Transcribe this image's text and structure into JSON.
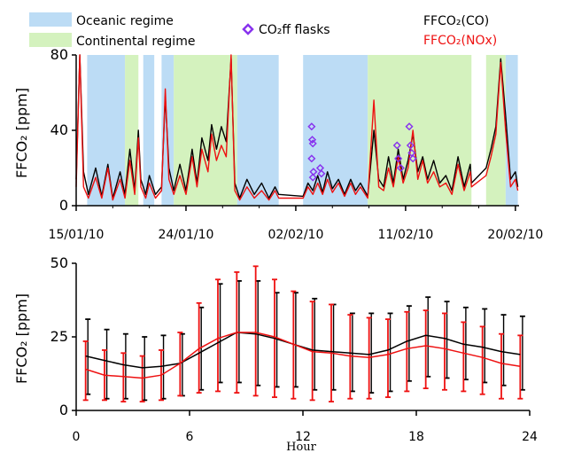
{
  "chart_data": [
    {
      "type": "line",
      "ylabel": "FFCO₂ [ppm]",
      "ylim": [
        0,
        80
      ],
      "y_ticks": [
        "0",
        "40",
        "80"
      ],
      "x_ticks": [
        "15/01/10",
        "24/01/10",
        "02/02/10",
        "11/02/10",
        "20/02/10"
      ],
      "x_tick_days": [
        0,
        9,
        18,
        27,
        36
      ],
      "xlim_days": [
        0,
        36.3
      ],
      "legend": {
        "oceanic": "Oceanic regime",
        "continental": "Continental regime",
        "flasks": "CO₂ff flasks",
        "series_co": "FFCO₂(CO)",
        "series_nox": "FFCO₂(NOx)"
      },
      "colors": {
        "oceanic": "#bcdcf5",
        "continental": "#d4f2be",
        "co": "#000000",
        "nox": "#ee1111",
        "flask": "#8833ee"
      },
      "regimes": [
        {
          "type": "oceanic",
          "start": 0.9,
          "end": 4.0
        },
        {
          "type": "continental",
          "start": 4.0,
          "end": 5.1
        },
        {
          "type": "oceanic",
          "start": 5.5,
          "end": 6.4
        },
        {
          "type": "oceanic",
          "start": 7.0,
          "end": 8.0
        },
        {
          "type": "continental",
          "start": 8.0,
          "end": 13.2
        },
        {
          "type": "oceanic",
          "start": 13.2,
          "end": 16.6
        },
        {
          "type": "oceanic",
          "start": 18.6,
          "end": 23.9
        },
        {
          "type": "continental",
          "start": 23.9,
          "end": 32.4
        },
        {
          "type": "continental",
          "start": 33.6,
          "end": 35.2
        },
        {
          "type": "oceanic",
          "start": 35.2,
          "end": 36.2
        }
      ],
      "series": [
        {
          "name": "FFCO₂(CO)",
          "points": [
            [
              0,
              14
            ],
            [
              0.3,
              80
            ],
            [
              0.6,
              18
            ],
            [
              1,
              6
            ],
            [
              1.6,
              20
            ],
            [
              2.1,
              5
            ],
            [
              2.6,
              22
            ],
            [
              3.0,
              4
            ],
            [
              3.6,
              18
            ],
            [
              4.0,
              6
            ],
            [
              4.4,
              30
            ],
            [
              4.8,
              8
            ],
            [
              5.1,
              40
            ],
            [
              5.3,
              14
            ],
            [
              5.7,
              6
            ],
            [
              6.0,
              16
            ],
            [
              6.5,
              6
            ],
            [
              7.0,
              10
            ],
            [
              7.3,
              58
            ],
            [
              7.6,
              20
            ],
            [
              8.0,
              8
            ],
            [
              8.5,
              22
            ],
            [
              9.0,
              8
            ],
            [
              9.5,
              30
            ],
            [
              9.9,
              12
            ],
            [
              10.3,
              36
            ],
            [
              10.8,
              24
            ],
            [
              11.1,
              43
            ],
            [
              11.5,
              30
            ],
            [
              11.9,
              42
            ],
            [
              12.3,
              34
            ],
            [
              12.7,
              78
            ],
            [
              13.0,
              12
            ],
            [
              13.4,
              4
            ],
            [
              14.0,
              14
            ],
            [
              14.6,
              6
            ],
            [
              15.2,
              12
            ],
            [
              15.8,
              4
            ],
            [
              16.3,
              10
            ],
            [
              16.6,
              6
            ],
            [
              18.6,
              5
            ],
            [
              19.0,
              12
            ],
            [
              19.4,
              8
            ],
            [
              19.8,
              16
            ],
            [
              20.2,
              7
            ],
            [
              20.6,
              18
            ],
            [
              21.0,
              9
            ],
            [
              21.5,
              14
            ],
            [
              22.0,
              6
            ],
            [
              22.5,
              14
            ],
            [
              22.9,
              8
            ],
            [
              23.3,
              12
            ],
            [
              23.9,
              5
            ],
            [
              24.4,
              40
            ],
            [
              24.8,
              14
            ],
            [
              25.2,
              10
            ],
            [
              25.6,
              26
            ],
            [
              26.0,
              12
            ],
            [
              26.4,
              30
            ],
            [
              26.8,
              14
            ],
            [
              27.2,
              24
            ],
            [
              27.6,
              38
            ],
            [
              28.0,
              18
            ],
            [
              28.4,
              26
            ],
            [
              28.8,
              14
            ],
            [
              29.3,
              24
            ],
            [
              29.8,
              12
            ],
            [
              30.3,
              16
            ],
            [
              30.8,
              8
            ],
            [
              31.3,
              26
            ],
            [
              31.8,
              10
            ],
            [
              32.3,
              22
            ],
            [
              32.4,
              12
            ],
            [
              33.6,
              20
            ],
            [
              34.0,
              30
            ],
            [
              34.4,
              42
            ],
            [
              34.8,
              78
            ],
            [
              35.2,
              48
            ],
            [
              35.6,
              14
            ],
            [
              36.0,
              18
            ],
            [
              36.2,
              10
            ]
          ]
        },
        {
          "name": "FFCO₂(NOx)",
          "points": [
            [
              0,
              10
            ],
            [
              0.3,
              80
            ],
            [
              0.6,
              10
            ],
            [
              1,
              4
            ],
            [
              1.6,
              15
            ],
            [
              2.1,
              4
            ],
            [
              2.6,
              20
            ],
            [
              3.0,
              3
            ],
            [
              3.6,
              14
            ],
            [
              4.0,
              4
            ],
            [
              4.4,
              24
            ],
            [
              4.8,
              6
            ],
            [
              5.1,
              36
            ],
            [
              5.3,
              10
            ],
            [
              5.7,
              4
            ],
            [
              6.0,
              12
            ],
            [
              6.5,
              4
            ],
            [
              7.0,
              8
            ],
            [
              7.3,
              62
            ],
            [
              7.6,
              14
            ],
            [
              8.0,
              6
            ],
            [
              8.5,
              16
            ],
            [
              9.0,
              6
            ],
            [
              9.5,
              26
            ],
            [
              9.9,
              10
            ],
            [
              10.3,
              30
            ],
            [
              10.8,
              18
            ],
            [
              11.1,
              38
            ],
            [
              11.5,
              24
            ],
            [
              11.9,
              32
            ],
            [
              12.3,
              26
            ],
            [
              12.7,
              80
            ],
            [
              13.0,
              8
            ],
            [
              13.4,
              3
            ],
            [
              14.0,
              10
            ],
            [
              14.6,
              4
            ],
            [
              15.2,
              8
            ],
            [
              15.8,
              3
            ],
            [
              16.3,
              8
            ],
            [
              16.6,
              4
            ],
            [
              18.6,
              4
            ],
            [
              19.0,
              10
            ],
            [
              19.4,
              6
            ],
            [
              19.8,
              12
            ],
            [
              20.2,
              6
            ],
            [
              20.6,
              14
            ],
            [
              21.0,
              7
            ],
            [
              21.5,
              12
            ],
            [
              22.0,
              5
            ],
            [
              22.5,
              12
            ],
            [
              22.9,
              6
            ],
            [
              23.3,
              10
            ],
            [
              23.9,
              4
            ],
            [
              24.4,
              56
            ],
            [
              24.8,
              10
            ],
            [
              25.2,
              8
            ],
            [
              25.6,
              20
            ],
            [
              26.0,
              10
            ],
            [
              26.4,
              26
            ],
            [
              26.8,
              12
            ],
            [
              27.2,
              20
            ],
            [
              27.6,
              40
            ],
            [
              28.0,
              14
            ],
            [
              28.4,
              24
            ],
            [
              28.8,
              12
            ],
            [
              29.3,
              18
            ],
            [
              29.8,
              10
            ],
            [
              30.3,
              12
            ],
            [
              30.8,
              6
            ],
            [
              31.3,
              22
            ],
            [
              31.8,
              8
            ],
            [
              32.3,
              18
            ],
            [
              32.4,
              10
            ],
            [
              33.6,
              16
            ],
            [
              34.0,
              26
            ],
            [
              34.4,
              38
            ],
            [
              34.8,
              76
            ],
            [
              35.2,
              40
            ],
            [
              35.6,
              10
            ],
            [
              36.0,
              14
            ],
            [
              36.2,
              8
            ]
          ]
        }
      ],
      "flasks": [
        [
          19.3,
          42
        ],
        [
          19.35,
          35
        ],
        [
          19.4,
          33
        ],
        [
          19.3,
          25
        ],
        [
          19.45,
          18
        ],
        [
          19.4,
          15
        ],
        [
          20.0,
          20
        ],
        [
          20.1,
          17
        ],
        [
          26.3,
          32
        ],
        [
          26.4,
          25
        ],
        [
          26.6,
          20
        ],
        [
          27.3,
          42
        ],
        [
          27.4,
          32
        ],
        [
          27.5,
          28
        ],
        [
          27.6,
          25
        ]
      ]
    },
    {
      "type": "line",
      "xlabel": "Hour",
      "ylabel": "FFCO₂ [ppm]",
      "xlim": [
        0,
        24
      ],
      "ylim": [
        0,
        50
      ],
      "x_ticks": [
        "0",
        "6",
        "12",
        "18",
        "24"
      ],
      "y_ticks": [
        "0",
        "25",
        "50"
      ],
      "hours": [
        0.5,
        1.5,
        2.5,
        3.5,
        4.5,
        5.5,
        6.5,
        7.5,
        8.5,
        9.5,
        10.5,
        11.5,
        12.5,
        13.5,
        14.5,
        15.5,
        16.5,
        17.5,
        18.5,
        19.5,
        20.5,
        21.5,
        22.5,
        23.5
      ],
      "series": [
        {
          "name": "FFCO₂(CO)",
          "mean": [
            18.5,
            17,
            15.5,
            14.5,
            15,
            16,
            19.5,
            23,
            26.5,
            26,
            24.5,
            22.5,
            20.5,
            20,
            19.5,
            19,
            20.5,
            23.5,
            25.5,
            24.5,
            22.5,
            21.5,
            20,
            19
          ],
          "upper": [
            31,
            27.5,
            26,
            25,
            25.5,
            26,
            35,
            43,
            44,
            44,
            40,
            40,
            38,
            36,
            33,
            33,
            33,
            35.5,
            38.5,
            37,
            35,
            34.5,
            32.5,
            32
          ],
          "lower": [
            5.5,
            4,
            4,
            3.5,
            4,
            5,
            7,
            9.5,
            9.5,
            8.5,
            8,
            8,
            7,
            7,
            6.5,
            6,
            6.5,
            10,
            11.5,
            11,
            10.5,
            9.5,
            8.5,
            7
          ]
        },
        {
          "name": "FFCO₂(NOx)",
          "mean": [
            14,
            12,
            11.5,
            11,
            12,
            16,
            21,
            24.5,
            26.5,
            26.5,
            25,
            22.5,
            20,
            19.5,
            18.5,
            18,
            19,
            21,
            22,
            21,
            19.5,
            18,
            16,
            15
          ],
          "upper": [
            23.5,
            20.5,
            19.5,
            18.5,
            20.5,
            26.5,
            36.5,
            44.5,
            47,
            49,
            44.5,
            40.5,
            37,
            36,
            32.5,
            31.5,
            31,
            33.5,
            34,
            33,
            30,
            28.5,
            26,
            25.5
          ],
          "lower": [
            3.5,
            3.5,
            3,
            3,
            3.5,
            5,
            6,
            6.5,
            6,
            5,
            4.5,
            4,
            3.5,
            3,
            4,
            4,
            4.5,
            6.5,
            7.5,
            7,
            6.5,
            5.5,
            4,
            4
          ]
        }
      ]
    }
  ]
}
